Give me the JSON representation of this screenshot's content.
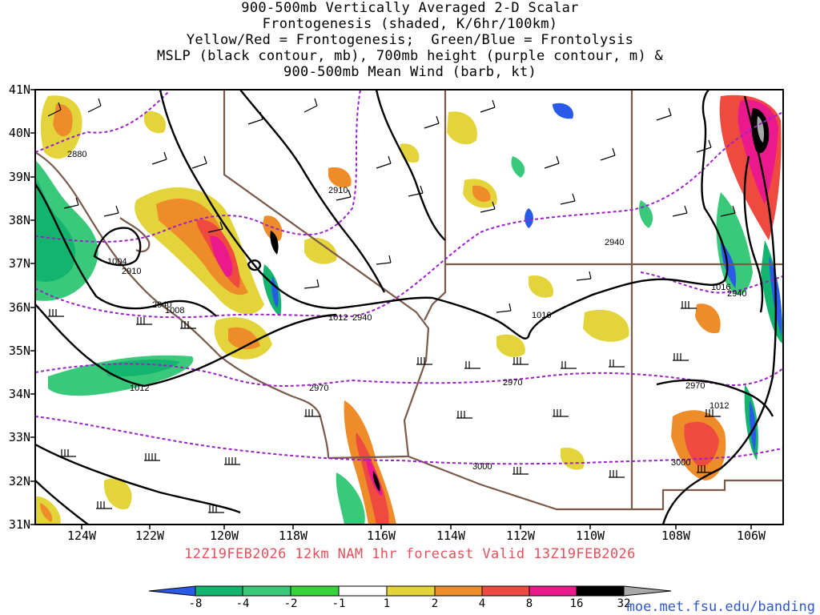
{
  "title": {
    "line1": "900-500mb Vertically Averaged 2-D Scalar",
    "line2": "Frontogenesis (shaded, K/6hr/100km)",
    "line3": "Yellow/Red = Frontogenesis;  Green/Blue = Frontolysis",
    "line4": "MSLP (black contour, mb), 700mb height (purple contour, m) &",
    "line5": "900-500mb Mean Wind (barb, kt)"
  },
  "axes": {
    "lat_labels": [
      "41N",
      "40N",
      "39N",
      "38N",
      "37N",
      "36N",
      "35N",
      "34N",
      "33N",
      "32N",
      "31N"
    ],
    "lon_labels": [
      "124W",
      "122W",
      "120W",
      "118W",
      "116W",
      "114W",
      "112W",
      "110W",
      "108W",
      "106W"
    ],
    "lat_range": [
      31,
      41
    ],
    "lon_range": [
      -125,
      -105
    ]
  },
  "contour_labels": {
    "mslp": [
      "1004",
      "1008",
      "1012",
      "1012",
      "1016",
      "1016",
      "1012"
    ],
    "height": [
      "2880",
      "2910",
      "2910",
      "2940",
      "2940",
      "2940",
      "2970",
      "2970",
      "2970",
      "3000",
      "3000",
      "2940"
    ]
  },
  "footer": "12Z19FEB2026  12km  NAM  1hr  forecast  Valid  13Z19FEB2026",
  "colorbar": {
    "labels": [
      "-8",
      "-4",
      "-2",
      "-1",
      "1",
      "2",
      "4",
      "8",
      "16",
      "32"
    ],
    "colors": [
      "#2a5ae8",
      "#12b46e",
      "#3ac97a",
      "#36d43a",
      "#ffffff",
      "#e2d43a",
      "#ee8c2a",
      "#ee4a40",
      "#ea1a8c",
      "#000000",
      "#a8a8a8"
    ]
  },
  "url": "moe.met.fsu.edu/banding",
  "colors": {
    "state_border": "#7a5a4a",
    "mslp": "#000000",
    "height": "#9a22c8"
  }
}
